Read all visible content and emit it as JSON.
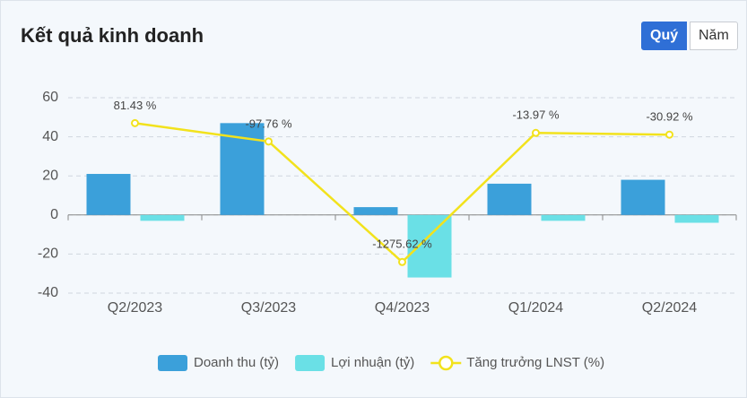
{
  "chart_data": {
    "type": "bar-line",
    "title": "Kết quả kinh doanh",
    "controls": [
      "Quý",
      "Năm"
    ],
    "categories": [
      "Q2/2023",
      "Q3/2023",
      "Q4/2023",
      "Q1/2024",
      "Q2/2024"
    ],
    "series": [
      {
        "name": "Doanh thu (tỷ)",
        "type": "bar",
        "color": "#3ba0da",
        "values": [
          21,
          47,
          4,
          16,
          18
        ]
      },
      {
        "name": "Lợi nhuận (tỷ)",
        "type": "bar",
        "color": "#6ae0e6",
        "values": [
          -3,
          0,
          -32,
          -3,
          -4
        ]
      },
      {
        "name": "Tăng trưởng LNST (%)",
        "type": "line",
        "axis": "y2",
        "color": "#f2e21c",
        "values": [
          81.43,
          -97.76,
          -1275.62,
          -13.97,
          -30.92
        ],
        "value_labels": [
          "81.43 %",
          "-97.76 %",
          "-1275.62 %",
          "-13.97 %",
          "-30.92 %"
        ]
      }
    ],
    "ylim": [
      -40,
      60
    ],
    "yticks": [
      -40,
      -20,
      0,
      20,
      40,
      60
    ],
    "y2lim": [
      -1580,
      330
    ],
    "grid": true,
    "legend": "bottom"
  }
}
